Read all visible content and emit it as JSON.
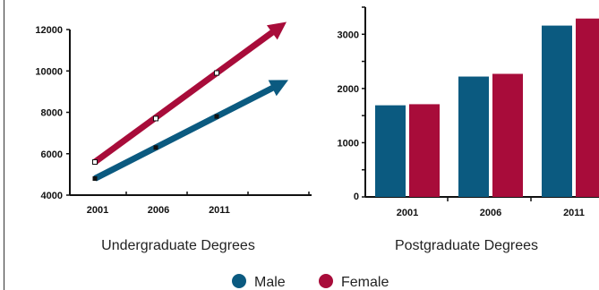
{
  "chart_data": [
    {
      "type": "line",
      "caption": "Undergraduate Degrees",
      "x": [
        2001,
        2006,
        2011
      ],
      "x_tick_labels": [
        "2001",
        "2006",
        "2011"
      ],
      "y_tick_labels": [
        "4000",
        "6000",
        "8000",
        "10000",
        "12000"
      ],
      "ylim": [
        4000,
        12000
      ],
      "series": [
        {
          "name": "Male",
          "values": [
            4800,
            6300,
            7800
          ],
          "color": "#0b5a80"
        },
        {
          "name": "Female",
          "values": [
            5600,
            7700,
            9900
          ],
          "color": "#a80c3a"
        }
      ]
    },
    {
      "type": "bar",
      "caption": "Postgraduate Degrees",
      "categories": [
        "2001",
        "2006",
        "2011"
      ],
      "y_tick_labels": [
        "0",
        "1000",
        "2000",
        "3000"
      ],
      "ylim": [
        0,
        3500
      ],
      "series": [
        {
          "name": "Male",
          "values": [
            1690,
            2220,
            3160
          ],
          "color": "#0b5a80"
        },
        {
          "name": "Female",
          "values": [
            1710,
            2270,
            3290
          ],
          "color": "#a80c3a"
        }
      ]
    }
  ],
  "legend": [
    {
      "label": "Male",
      "color": "#0b5a80"
    },
    {
      "label": "Female",
      "color": "#a80c3a"
    }
  ]
}
